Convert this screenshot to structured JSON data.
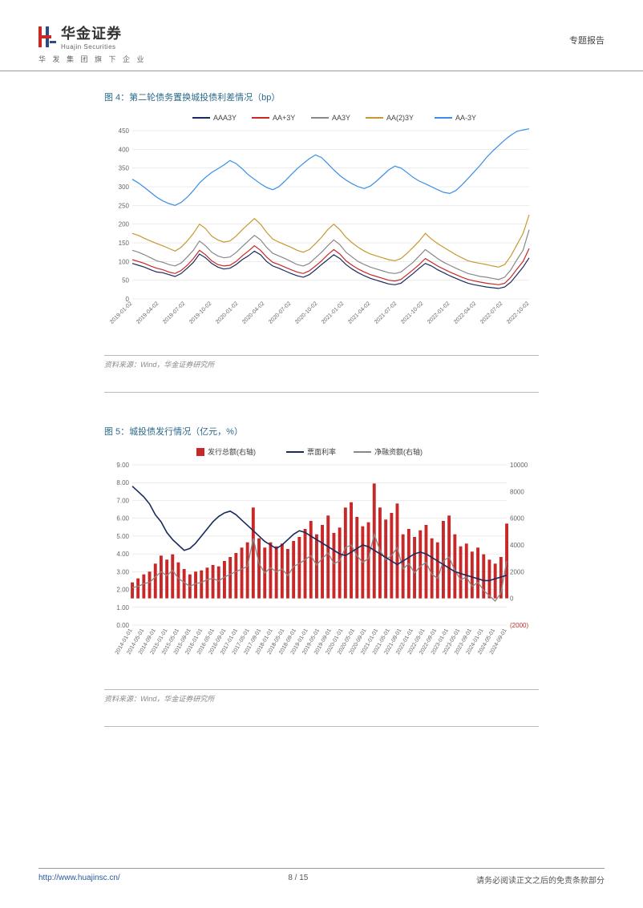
{
  "header": {
    "company_cn": "华金证券",
    "company_en": "Huajin Securities",
    "tagline": "华 发 集 团 旗 下 企 业",
    "doc_type": "专题报告"
  },
  "fig4": {
    "title": "图 4：第二轮债务置换城投债利差情况（bp）",
    "source": "资料来源：Wind，华金证券研究所",
    "type": "line",
    "ylim": [
      0,
      450
    ],
    "ytick_step": 50,
    "yticks": [
      0,
      50,
      100,
      150,
      200,
      250,
      300,
      350,
      400,
      450
    ],
    "xlabels": [
      "2019-01-02",
      "2019-04-02",
      "2019-07-02",
      "2019-10-02",
      "2020-01-02",
      "2020-04-02",
      "2020-07-02",
      "2020-10-02",
      "2021-01-02",
      "2021-04-02",
      "2021-07-02",
      "2021-10-02",
      "2022-01-02",
      "2022-04-02",
      "2022-07-02",
      "2022-10-02"
    ],
    "legend": [
      {
        "label": "AAA3Y",
        "color": "#1b2a5e"
      },
      {
        "label": "AA+3Y",
        "color": "#c82828"
      },
      {
        "label": "AA3Y",
        "color": "#888888"
      },
      {
        "label": "AA(2)3Y",
        "color": "#c89830"
      },
      {
        "label": "AA-3Y",
        "color": "#3a8ee6"
      }
    ],
    "series": {
      "AAA3Y": [
        95,
        90,
        85,
        78,
        72,
        70,
        65,
        60,
        68,
        82,
        98,
        120,
        110,
        95,
        85,
        80,
        82,
        92,
        105,
        115,
        128,
        118,
        100,
        88,
        82,
        75,
        68,
        62,
        58,
        65,
        78,
        92,
        105,
        118,
        108,
        92,
        80,
        70,
        62,
        55,
        50,
        45,
        40,
        38,
        42,
        55,
        68,
        82,
        95,
        88,
        78,
        70,
        62,
        55,
        48,
        42,
        38,
        35,
        32,
        30,
        28,
        32,
        45,
        65,
        85,
        110
      ],
      "AA+3Y": [
        105,
        100,
        95,
        88,
        82,
        78,
        72,
        68,
        76,
        90,
        108,
        130,
        118,
        102,
        92,
        88,
        90,
        100,
        115,
        128,
        142,
        130,
        112,
        98,
        92,
        85,
        78,
        72,
        68,
        75,
        88,
        102,
        118,
        132,
        120,
        102,
        90,
        80,
        72,
        65,
        60,
        55,
        50,
        48,
        52,
        65,
        78,
        92,
        108,
        98,
        88,
        80,
        72,
        65,
        58,
        52,
        48,
        45,
        42,
        40,
        38,
        42,
        58,
        80,
        100,
        135
      ],
      "AA3Y": [
        130,
        125,
        118,
        110,
        102,
        98,
        92,
        88,
        96,
        112,
        130,
        155,
        142,
        125,
        115,
        110,
        112,
        124,
        140,
        155,
        170,
        158,
        138,
        122,
        115,
        108,
        100,
        92,
        88,
        95,
        110,
        125,
        142,
        158,
        145,
        125,
        112,
        100,
        92,
        85,
        80,
        75,
        70,
        68,
        72,
        85,
        98,
        115,
        132,
        120,
        108,
        98,
        90,
        82,
        75,
        68,
        64,
        60,
        58,
        55,
        52,
        58,
        78,
        105,
        130,
        185
      ],
      "AA23Y": [
        175,
        170,
        162,
        155,
        148,
        142,
        135,
        128,
        138,
        155,
        175,
        200,
        188,
        168,
        158,
        152,
        155,
        168,
        185,
        200,
        215,
        200,
        178,
        160,
        152,
        145,
        138,
        130,
        125,
        132,
        148,
        165,
        185,
        200,
        185,
        165,
        150,
        138,
        128,
        120,
        115,
        110,
        105,
        102,
        108,
        122,
        138,
        155,
        175,
        160,
        148,
        138,
        128,
        118,
        110,
        102,
        98,
        95,
        92,
        88,
        85,
        92,
        115,
        145,
        175,
        225
      ],
      "AA-3Y": [
        320,
        310,
        298,
        285,
        272,
        262,
        255,
        250,
        258,
        272,
        290,
        310,
        325,
        338,
        348,
        358,
        370,
        362,
        348,
        332,
        320,
        308,
        298,
        292,
        300,
        315,
        332,
        348,
        362,
        375,
        385,
        378,
        362,
        345,
        330,
        318,
        308,
        300,
        295,
        302,
        315,
        330,
        345,
        355,
        350,
        338,
        325,
        315,
        308,
        300,
        292,
        285,
        282,
        290,
        305,
        322,
        340,
        358,
        378,
        395,
        410,
        425,
        438,
        448,
        452,
        455
      ]
    },
    "n": 66,
    "grid_color": "#d8d8d8",
    "background_color": "#ffffff"
  },
  "fig5": {
    "title": "图 5：城投债发行情况（亿元，%）",
    "source": "资料来源：Wind，华金证券研究所",
    "type": "combo",
    "legend": [
      {
        "label": "发行总额(右轴)",
        "color": "#c82828",
        "shape": "bar"
      },
      {
        "label": "票面利率",
        "color": "#1b2a5e",
        "shape": "line"
      },
      {
        "label": "净融资额(右轴)",
        "color": "#888888",
        "shape": "line"
      }
    ],
    "yleft": {
      "lim": [
        0,
        9
      ],
      "ticks": [
        0,
        1,
        2,
        3,
        4,
        5,
        6,
        7,
        8,
        9
      ],
      "fmt": ".00"
    },
    "yright": {
      "lim": [
        -2000,
        10000
      ],
      "ticks": [
        -2000,
        0,
        2000,
        4000,
        6000,
        8000,
        10000
      ]
    },
    "xlabels": [
      "2014-01-01",
      "2014-05-01",
      "2014-09-01",
      "2015-01-01",
      "2015-05-01",
      "2015-09-01",
      "2016-01-01",
      "2016-05-01",
      "2016-09-01",
      "2017-01-01",
      "2017-05-01",
      "2017-09-01",
      "2018-01-01",
      "2018-05-01",
      "2018-09-01",
      "2019-01-01",
      "2019-05-01",
      "2019-09-01",
      "2020-01-01",
      "2020-05-01",
      "2020-09-01",
      "2021-01-01",
      "2021-05-01",
      "2021-09-01",
      "2022-01-01",
      "2022-05-01",
      "2022-09-01",
      "2023-01-01",
      "2023-05-01",
      "2023-09-01",
      "2024-01-01",
      "2024-05-01",
      "2024-09-01"
    ],
    "bars": [
      1200,
      1500,
      1800,
      2000,
      2600,
      3200,
      2900,
      3300,
      2700,
      2200,
      1800,
      2000,
      2100,
      2300,
      2500,
      2400,
      2800,
      3100,
      3400,
      3800,
      4200,
      6800,
      4500,
      3800,
      4200,
      3900,
      4100,
      3700,
      4300,
      4600,
      5200,
      5800,
      4800,
      5500,
      6200,
      4900,
      5300,
      6800,
      7200,
      6100,
      5400,
      5700,
      8600,
      6800,
      5900,
      6400,
      7100,
      4800,
      5200,
      4600,
      5100,
      5500,
      4500,
      4200,
      5800,
      6200,
      4800,
      3900,
      4100,
      3500,
      3800,
      3300,
      2900,
      2600,
      3100,
      5600
    ],
    "net": [
      800,
      900,
      1100,
      1200,
      1600,
      2000,
      1700,
      2100,
      1500,
      1200,
      900,
      1100,
      1200,
      1400,
      1500,
      1300,
      1600,
      1800,
      2000,
      2200,
      2400,
      4500,
      2600,
      1900,
      2300,
      2000,
      2200,
      1700,
      2400,
      2600,
      2900,
      3200,
      2500,
      3000,
      3400,
      2600,
      2800,
      3800,
      4000,
      3200,
      2700,
      3000,
      4800,
      3600,
      2900,
      3200,
      3800,
      2200,
      2600,
      1900,
      2400,
      2700,
      1800,
      1500,
      2800,
      3100,
      2100,
      1400,
      1600,
      900,
      1200,
      600,
      200,
      -200,
      400,
      2800
    ],
    "rate": [
      7.8,
      7.5,
      7.2,
      6.8,
      6.2,
      5.8,
      5.2,
      4.8,
      4.5,
      4.2,
      4.3,
      4.6,
      5.0,
      5.4,
      5.8,
      6.1,
      6.3,
      6.4,
      6.2,
      5.9,
      5.6,
      5.3,
      5.0,
      4.7,
      4.5,
      4.3,
      4.5,
      4.8,
      5.1,
      5.3,
      5.2,
      5.0,
      4.8,
      4.6,
      4.4,
      4.2,
      4.0,
      3.9,
      4.1,
      4.3,
      4.5,
      4.4,
      4.2,
      4.0,
      3.8,
      3.6,
      3.4,
      3.6,
      3.8,
      4.0,
      4.1,
      4.0,
      3.8,
      3.6,
      3.4,
      3.2,
      3.0,
      2.9,
      2.8,
      2.7,
      2.6,
      2.5,
      2.5,
      2.6,
      2.7,
      2.8
    ],
    "n": 66,
    "grid_color": "#d8d8d8",
    "background_color": "#ffffff",
    "neg_color": "#c82828"
  },
  "footer": {
    "url": "http://www.huajinsc.cn/",
    "page": "8 / 15",
    "disclaimer": "请务必阅读正文之后的免责条款部分"
  }
}
